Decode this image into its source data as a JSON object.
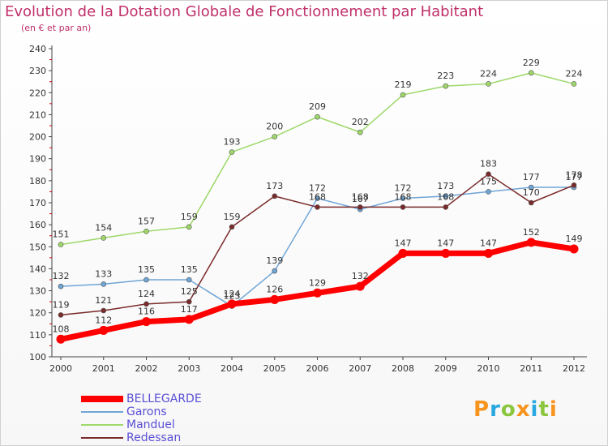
{
  "header": {
    "title": "Evolution de la Dotation Globale de Fonctionnement par Habitant",
    "subtitle": "(en € et par an)"
  },
  "chart_data": {
    "type": "line",
    "categories": [
      "2000",
      "2001",
      "2002",
      "2003",
      "2004",
      "2005",
      "2006",
      "2007",
      "2008",
      "2009",
      "2010",
      "2011",
      "2012"
    ],
    "ylim": [
      100,
      240
    ],
    "yticks": [
      100,
      110,
      120,
      130,
      140,
      150,
      160,
      170,
      180,
      190,
      200,
      210,
      220,
      230,
      240
    ],
    "grid": "none",
    "legend_position": "bottom-left",
    "series": [
      {
        "name": "Garons",
        "color": "#6fa5d6",
        "values": [
          132,
          133,
          135,
          135,
          123,
          139,
          172,
          167,
          172,
          173,
          175,
          177,
          177
        ],
        "labels": [
          "132",
          "133",
          "135",
          "135",
          "123",
          "139",
          "172",
          "167",
          "172",
          "173",
          "175",
          "177",
          "177"
        ]
      },
      {
        "name": "Manduel",
        "color": "#9ed86a",
        "values": [
          151,
          154,
          157,
          159,
          193,
          200,
          209,
          202,
          219,
          223,
          224,
          229,
          224
        ],
        "labels": [
          "151",
          "154",
          "157",
          "159",
          "193",
          "200",
          "209",
          "202",
          "219",
          "223",
          "224",
          "229",
          "224"
        ]
      },
      {
        "name": "Redessan",
        "color": "#7a2a2a",
        "values": [
          119,
          121,
          124,
          125,
          159,
          173,
          168,
          168,
          168,
          168,
          183,
          170,
          178
        ],
        "labels": [
          "119",
          "121",
          "124",
          "125",
          "159",
          "173",
          "168",
          "168",
          "168",
          "168",
          "183",
          "170",
          "178"
        ]
      },
      {
        "name": "BELLEGARDE",
        "color": "#ff0000",
        "values": [
          108,
          112,
          116,
          117,
          124,
          126,
          129,
          132,
          147,
          147,
          147,
          152,
          149
        ],
        "labels": [
          "108",
          "112",
          "116",
          "117",
          "124",
          "126",
          "129",
          "132",
          "147",
          "147",
          "147",
          "152",
          "149"
        ]
      }
    ]
  },
  "legend": [
    {
      "name": "BELLEGARDE",
      "color": "#ff0000"
    },
    {
      "name": "Garons",
      "color": "#6fa5d6"
    },
    {
      "name": "Manduel",
      "color": "#9ed86a"
    },
    {
      "name": "Redessan",
      "color": "#7a2a2a"
    }
  ],
  "logo": {
    "text": "Proxiti"
  }
}
